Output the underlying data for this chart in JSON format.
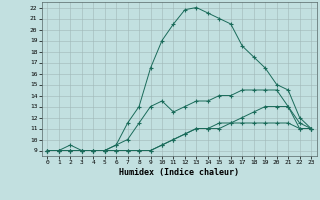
{
  "xlabel": "Humidex (Indice chaleur)",
  "background_color": "#c2e0e0",
  "grid_color": "#a0b8b8",
  "line_color": "#1a6b5a",
  "xlim": [
    -0.5,
    23.5
  ],
  "ylim": [
    8.5,
    22.5
  ],
  "xticks": [
    0,
    1,
    2,
    3,
    4,
    5,
    6,
    7,
    8,
    9,
    10,
    11,
    12,
    13,
    14,
    15,
    16,
    17,
    18,
    19,
    20,
    21,
    22,
    23
  ],
  "yticks": [
    9,
    10,
    11,
    12,
    13,
    14,
    15,
    16,
    17,
    18,
    19,
    20,
    21,
    22
  ],
  "line4_x": [
    0,
    1,
    2,
    3,
    4,
    5,
    6,
    7,
    8,
    9,
    10,
    11,
    12,
    13,
    14,
    15,
    16,
    17,
    18,
    19,
    20,
    21,
    22,
    23
  ],
  "line4_y": [
    9,
    9,
    9,
    9,
    9,
    9,
    9.5,
    11.5,
    13,
    16.5,
    19,
    20.5,
    21.8,
    22,
    21.5,
    21,
    20.5,
    18.5,
    17.5,
    16.5,
    15,
    14.5,
    12,
    11
  ],
  "line1_x": [
    0,
    1,
    2,
    3,
    4,
    5,
    6,
    7,
    8,
    9,
    10,
    11,
    12,
    13,
    14,
    15,
    16,
    17,
    18,
    19,
    20,
    21,
    22,
    23
  ],
  "line1_y": [
    9,
    9,
    9.5,
    9,
    9,
    9,
    9.5,
    10,
    11.5,
    13,
    13.5,
    12.5,
    13,
    13.5,
    13.5,
    14,
    14,
    14.5,
    14.5,
    14.5,
    14.5,
    13,
    11,
    11
  ],
  "line2_x": [
    0,
    1,
    2,
    3,
    4,
    5,
    6,
    7,
    8,
    9,
    10,
    11,
    12,
    13,
    14,
    15,
    16,
    17,
    18,
    19,
    20,
    21,
    22,
    23
  ],
  "line2_y": [
    9,
    9,
    9,
    9,
    9,
    9,
    9,
    9,
    9,
    9,
    9.5,
    10,
    10.5,
    11,
    11,
    11.5,
    11.5,
    12,
    12.5,
    13,
    13,
    13,
    11.5,
    11
  ],
  "line3_x": [
    0,
    1,
    2,
    3,
    4,
    5,
    6,
    7,
    8,
    9,
    10,
    11,
    12,
    13,
    14,
    15,
    16,
    17,
    18,
    19,
    20,
    21,
    22,
    23
  ],
  "line3_y": [
    9,
    9,
    9,
    9,
    9,
    9,
    9,
    9,
    9,
    9,
    9.5,
    10,
    10.5,
    11,
    11,
    11,
    11.5,
    11.5,
    11.5,
    11.5,
    11.5,
    11.5,
    11,
    11
  ]
}
